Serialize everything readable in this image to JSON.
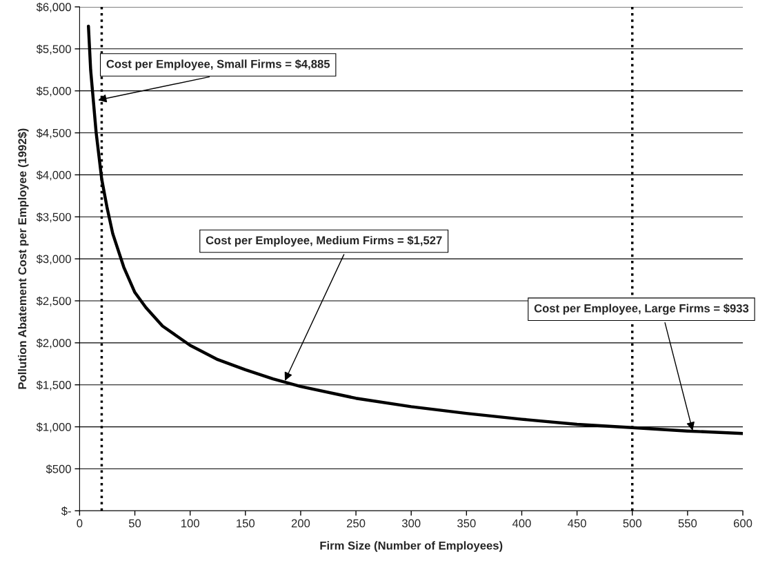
{
  "chart_data": {
    "type": "line",
    "xlabel": "Firm Size (Number of Employees)",
    "ylabel": "Pollution Abatement Cost per Employee (1992$)",
    "series": [
      {
        "color": "#000000",
        "x": [
          8,
          10,
          15,
          20,
          25,
          30,
          40,
          50,
          60,
          75,
          100,
          125,
          150,
          175,
          200,
          250,
          300,
          350,
          400,
          450,
          500,
          550,
          600
        ],
        "values": [
          5770,
          5250,
          4500,
          3950,
          3600,
          3300,
          2900,
          2600,
          2420,
          2200,
          1970,
          1800,
          1680,
          1570,
          1480,
          1340,
          1240,
          1160,
          1090,
          1030,
          990,
          950,
          920
        ]
      }
    ],
    "xlim": [
      0,
      600
    ],
    "xticks": [
      0,
      50,
      100,
      150,
      200,
      250,
      300,
      350,
      400,
      450,
      500,
      550,
      600
    ],
    "ylim": [
      0,
      6000
    ],
    "yticks": [
      {
        "value": 0,
        "label": "$-"
      },
      {
        "value": 500,
        "label": "$500"
      },
      {
        "value": 1000,
        "label": "$1,000"
      },
      {
        "value": 1500,
        "label": "$1,500"
      },
      {
        "value": 2000,
        "label": "$2,000"
      },
      {
        "value": 2500,
        "label": "$2,500"
      },
      {
        "value": 3000,
        "label": "$3,000"
      },
      {
        "value": 3500,
        "label": "$3,500"
      },
      {
        "value": 4000,
        "label": "$4,000"
      },
      {
        "value": 4500,
        "label": "$4,500"
      },
      {
        "value": 5000,
        "label": "$5,000"
      },
      {
        "value": 5500,
        "label": "$5,500"
      },
      {
        "value": 6000,
        "label": "$6,000"
      }
    ],
    "grid": "y",
    "line_style": "solid",
    "marker": "none",
    "ref_lines": [
      {
        "axis": "x",
        "value": 20,
        "color": "#000000",
        "line_style": "dotted"
      },
      {
        "axis": "x",
        "value": 500,
        "color": "#000000",
        "line_style": "dotted"
      }
    ],
    "annotations": [
      {
        "text": "Cost per Employee, Small Firms = $4,885",
        "x": 15,
        "y": 4885
      },
      {
        "text": "Cost per Employee, Medium Firms = $1,527",
        "x": 185,
        "y": 1527
      },
      {
        "text": "Cost per Employee, Large Firms = $933",
        "x": 555,
        "y": 933
      }
    ]
  }
}
